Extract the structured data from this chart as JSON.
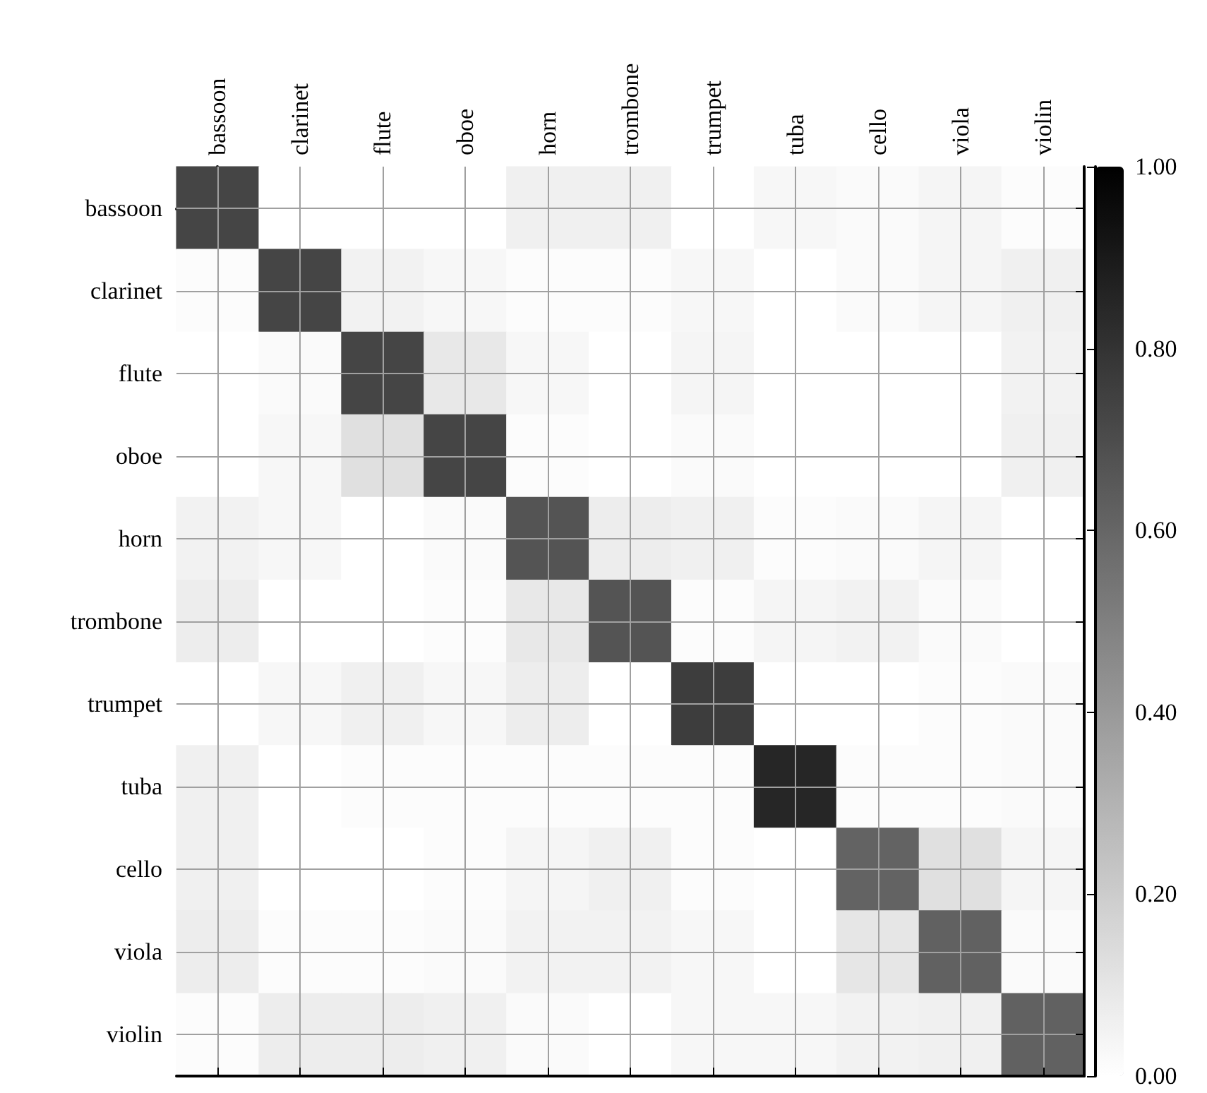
{
  "chart_data": {
    "type": "heatmap",
    "categories": [
      "bassoon",
      "clarinet",
      "flute",
      "oboe",
      "horn",
      "trombone",
      "trumpet",
      "tuba",
      "cello",
      "viola",
      "violin"
    ],
    "y_categories": [
      "bassoon",
      "clarinet",
      "flute",
      "oboe",
      "horn",
      "trombone",
      "trumpet",
      "tuba",
      "cello",
      "viola",
      "violin"
    ],
    "cells": [
      [
        0.73,
        0,
        0,
        0,
        0.06,
        0.06,
        0,
        0.03,
        0.02,
        0.04,
        0.01
      ],
      [
        0.01,
        0.73,
        0.05,
        0.03,
        0.01,
        0.01,
        0.03,
        0,
        0.02,
        0.04,
        0.06
      ],
      [
        0,
        0.02,
        0.73,
        0.09,
        0.03,
        0,
        0.04,
        0,
        0,
        0,
        0.05
      ],
      [
        0,
        0.03,
        0.12,
        0.73,
        0.01,
        0,
        0.02,
        0,
        0,
        0,
        0.06
      ],
      [
        0.05,
        0.03,
        0,
        0.02,
        0.67,
        0.07,
        0.06,
        0.01,
        0.02,
        0.04,
        0
      ],
      [
        0.07,
        0,
        0,
        0.01,
        0.09,
        0.67,
        0.01,
        0.04,
        0.05,
        0.02,
        0
      ],
      [
        0,
        0.03,
        0.06,
        0.03,
        0.07,
        0,
        0.76,
        0,
        0,
        0.01,
        0.02
      ],
      [
        0.06,
        0,
        0.01,
        0.01,
        0.01,
        0.01,
        0.01,
        0.85,
        0.01,
        0.01,
        0.02
      ],
      [
        0.06,
        0,
        0,
        0.01,
        0.04,
        0.06,
        0.01,
        0,
        0.61,
        0.12,
        0.04
      ],
      [
        0.07,
        0.01,
        0.01,
        0.02,
        0.05,
        0.05,
        0.03,
        0,
        0.1,
        0.62,
        0.02
      ],
      [
        0.01,
        0.07,
        0.07,
        0.06,
        0.02,
        0,
        0.03,
        0.03,
        0.05,
        0.06,
        0.62
      ]
    ],
    "clim": [
      0,
      1
    ],
    "cticks": [
      {
        "value": 0,
        "label": "0.00"
      },
      {
        "value": 0.2,
        "label": "0.20"
      },
      {
        "value": 0.4,
        "label": "0.40"
      },
      {
        "value": 0.6,
        "label": "0.60"
      },
      {
        "value": 0.8,
        "label": "0.80"
      },
      {
        "value": 1,
        "label": "1.00"
      }
    ],
    "grid": true
  }
}
